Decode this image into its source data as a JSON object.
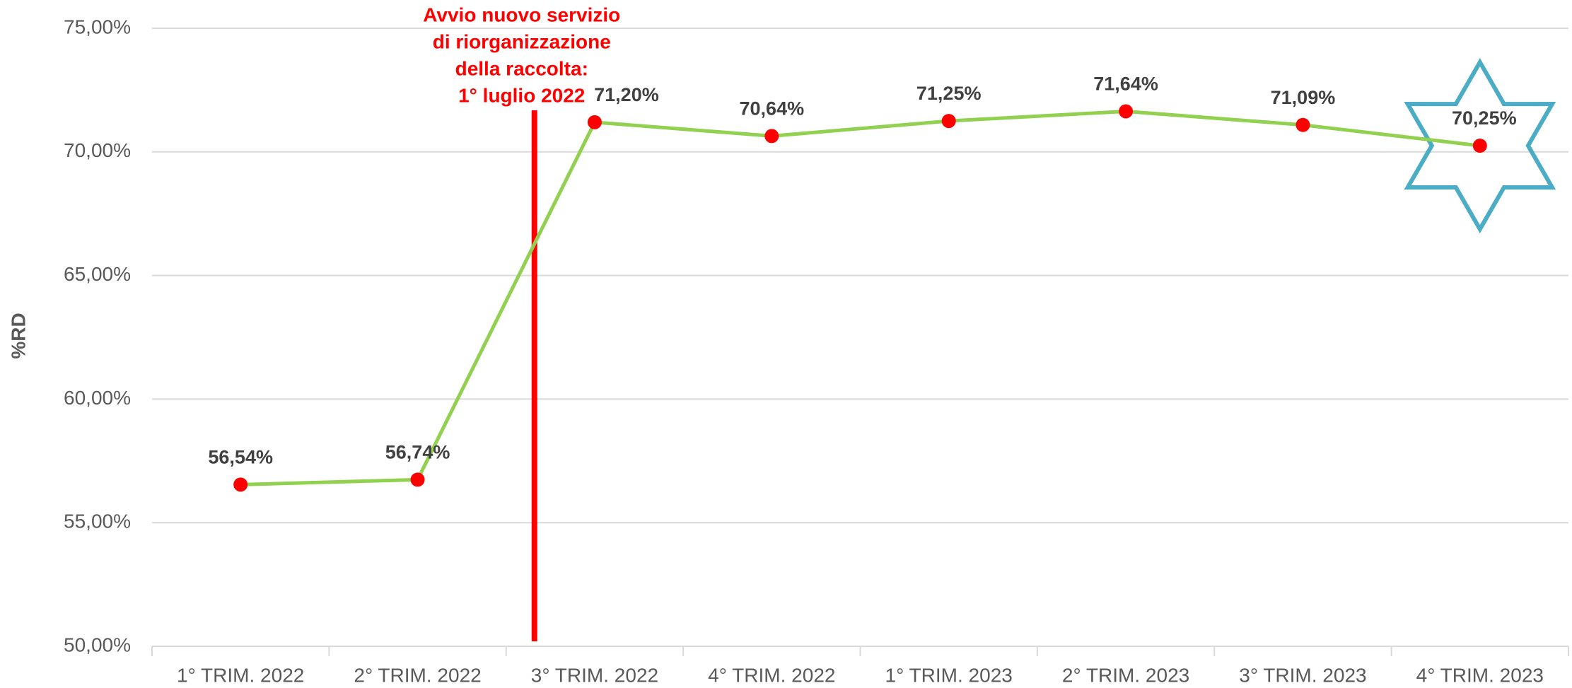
{
  "chart_data": {
    "type": "line",
    "categories": [
      "1° TRIM. 2022",
      "2° TRIM. 2022",
      "3° TRIM. 2022",
      "4° TRIM. 2022",
      "1° TRIM. 2023",
      "2° TRIM. 2023",
      "3° TRIM. 2023",
      "4° TRIM. 2023"
    ],
    "series": [
      {
        "name": "%RD",
        "color": "#92d050",
        "marker_color": "#ff0000",
        "values": [
          56.54,
          56.74,
          71.2,
          70.64,
          71.25,
          71.64,
          71.09,
          70.25
        ],
        "value_labels": [
          "56,54%",
          "56,74%",
          "71,20%",
          "70,64%",
          "71,25%",
          "71,64%",
          "71,09%",
          "70,25%"
        ]
      }
    ],
    "ylabel": "%RD",
    "ylim": [
      50,
      75
    ],
    "yticks": [
      {
        "value": 50,
        "label": "50,00%"
      },
      {
        "value": 55,
        "label": "55,00%"
      },
      {
        "value": 60,
        "label": "60,00%"
      },
      {
        "value": 65,
        "label": "65,00%"
      },
      {
        "value": 70,
        "label": "70,00%"
      },
      {
        "value": 75,
        "label": "75,00%"
      }
    ],
    "grid": true,
    "annotation": {
      "lines": [
        "Avvio nuovo servizio",
        "di riorganizzazione",
        "della raccolta:",
        "1° luglio 2022"
      ],
      "color": "#ff0000"
    }
  }
}
